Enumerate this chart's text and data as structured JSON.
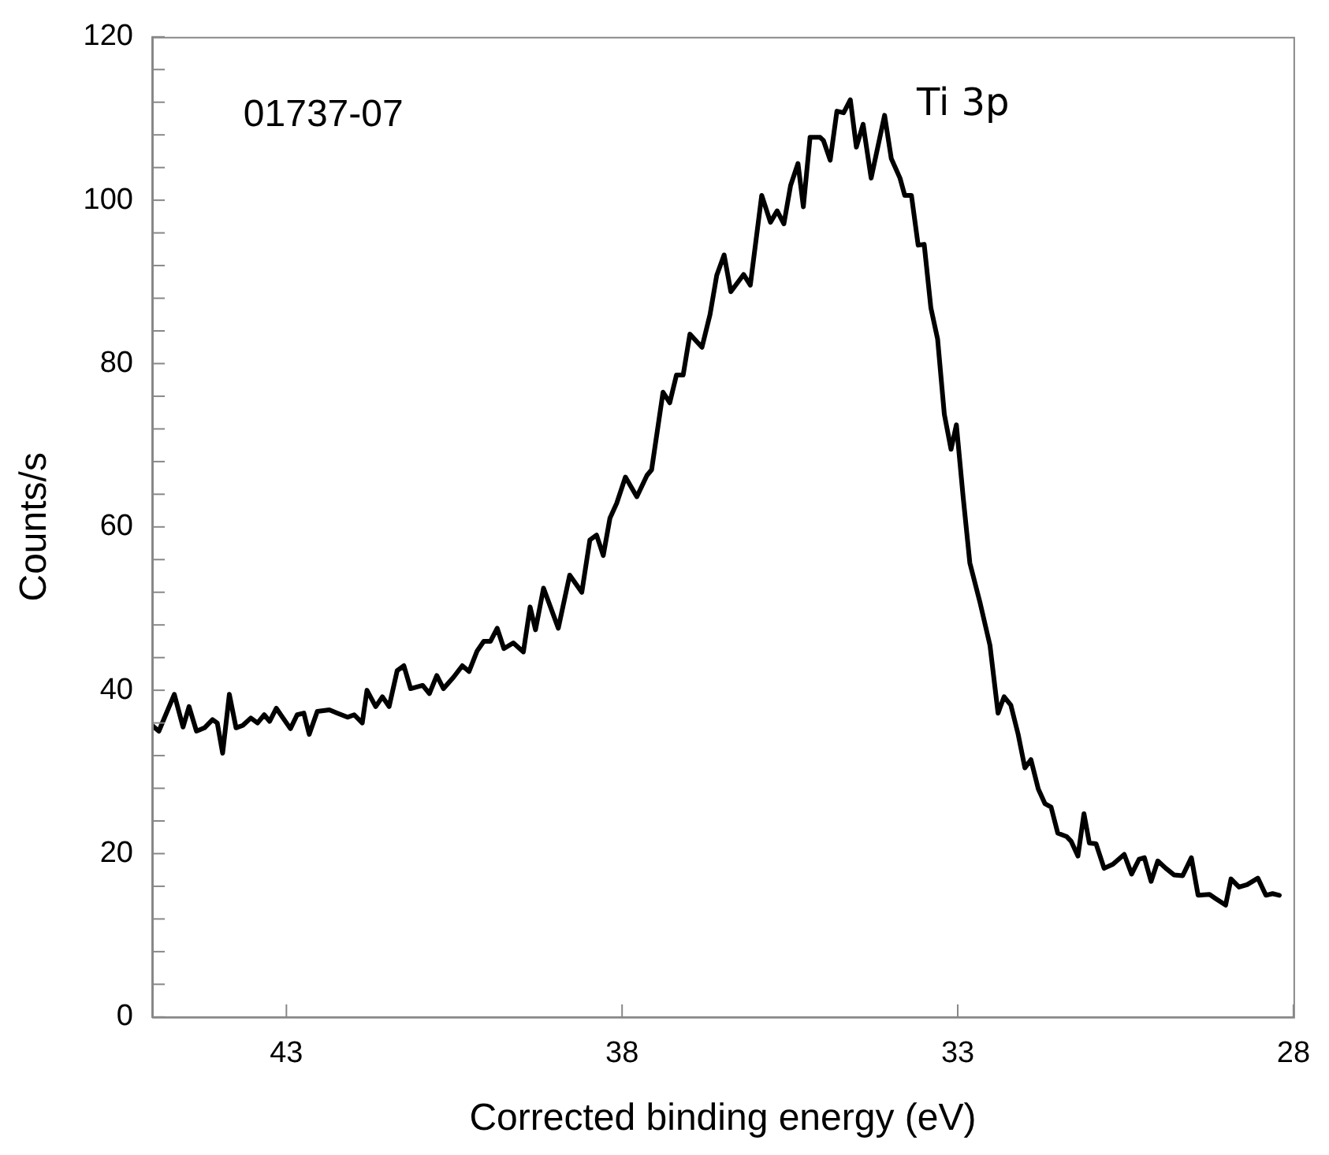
{
  "chart_data": {
    "type": "line",
    "xlabel": "Corrected binding energy (eV)",
    "ylabel": "Counts/s",
    "annotations": [
      "01737-07",
      "Ti 3p"
    ],
    "xlim": [
      45,
      28
    ],
    "xticks": [
      43,
      38,
      33,
      28
    ],
    "ylim": [
      0,
      120
    ],
    "yticks": [
      0,
      {
        "value": 4,
        "label": null
      },
      {
        "value": 8,
        "label": null
      },
      {
        "value": 12,
        "label": null
      },
      {
        "value": 16,
        "label": null
      },
      20,
      {
        "value": 24,
        "label": null
      },
      {
        "value": 28,
        "label": null
      },
      {
        "value": 32,
        "label": null
      },
      {
        "value": 36,
        "label": null
      },
      40,
      {
        "value": 44,
        "label": null
      },
      {
        "value": 48,
        "label": null
      },
      {
        "value": 52,
        "label": null
      },
      {
        "value": 56,
        "label": null
      },
      60,
      {
        "value": 64,
        "label": null
      },
      {
        "value": 68,
        "label": null
      },
      {
        "value": 72,
        "label": null
      },
      {
        "value": 76,
        "label": null
      },
      80,
      {
        "value": 84,
        "label": null
      },
      {
        "value": 88,
        "label": null
      },
      {
        "value": 92,
        "label": null
      },
      {
        "value": 96,
        "label": null
      },
      100,
      {
        "value": 104,
        "label": null
      },
      {
        "value": 108,
        "label": null
      },
      {
        "value": 112,
        "label": null
      },
      {
        "value": 116,
        "label": null
      },
      120
    ],
    "grid": false,
    "legend": false,
    "marker": "none",
    "line_style": "solid",
    "series": [
      {
        "color": "#000000",
        "x": [
          45.0,
          44.9,
          44.67,
          44.54,
          44.45,
          44.34,
          44.22,
          44.1,
          44.03,
          43.95,
          43.85,
          43.75,
          43.65,
          43.53,
          43.43,
          43.33,
          43.25,
          43.15,
          43.05,
          42.94,
          42.84,
          42.74,
          42.66,
          42.54,
          42.36,
          42.24,
          42.09,
          41.99,
          41.87,
          41.8,
          41.67,
          41.57,
          41.47,
          41.35,
          41.25,
          41.15,
          40.97,
          40.87,
          40.76,
          40.66,
          40.51,
          40.38,
          40.28,
          40.16,
          40.06,
          39.96,
          39.86,
          39.76,
          39.62,
          39.47,
          39.37,
          39.29,
          39.17,
          38.95,
          38.78,
          38.6,
          38.48,
          38.38,
          38.28,
          38.18,
          38.08,
          37.95,
          37.78,
          37.63,
          37.56,
          37.39,
          37.29,
          37.19,
          37.09,
          36.99,
          36.81,
          36.69,
          36.59,
          36.48,
          36.38,
          36.19,
          36.09,
          35.92,
          35.79,
          35.69,
          35.59,
          35.49,
          35.38,
          35.3,
          35.2,
          35.05,
          35.0,
          34.9,
          34.8,
          34.7,
          34.6,
          34.51,
          34.41,
          34.29,
          34.09,
          33.99,
          33.86,
          33.79,
          33.69,
          33.59,
          33.5,
          33.4,
          33.3,
          33.2,
          33.1,
          33.02,
          32.92,
          32.82,
          32.67,
          32.52,
          32.4,
          32.31,
          32.21,
          32.1,
          32.0,
          31.91,
          31.8,
          31.7,
          31.61,
          31.51,
          31.38,
          31.31,
          31.21,
          31.12,
          31.04,
          30.94,
          30.82,
          30.69,
          30.52,
          30.41,
          30.3,
          30.22,
          30.12,
          30.02,
          29.9,
          29.78,
          29.65,
          29.52,
          29.42,
          29.25,
          29.16,
          29.01,
          28.93,
          28.81,
          28.69,
          28.53,
          28.41,
          28.31,
          28.21
        ],
        "values": [
          35.7,
          35.0,
          39.5,
          35.5,
          38.0,
          35.0,
          35.4,
          36.4,
          36.0,
          32.3,
          39.5,
          35.4,
          35.7,
          36.6,
          36.0,
          37.0,
          36.2,
          37.8,
          36.6,
          35.3,
          37.0,
          37.2,
          34.6,
          37.4,
          37.6,
          37.2,
          36.7,
          37.0,
          36.0,
          40.0,
          38.0,
          39.2,
          38.0,
          42.4,
          43.0,
          40.2,
          40.6,
          39.6,
          41.8,
          40.2,
          41.6,
          43.0,
          42.3,
          44.8,
          46.0,
          46.0,
          47.6,
          45.1,
          45.8,
          44.7,
          50.2,
          47.4,
          52.5,
          47.6,
          54.1,
          52.0,
          58.4,
          59.0,
          56.5,
          61.1,
          62.9,
          66.1,
          63.7,
          66.3,
          67.0,
          76.5,
          75.2,
          78.6,
          78.6,
          83.6,
          82.0,
          86.0,
          90.8,
          93.3,
          88.8,
          90.9,
          89.6,
          100.6,
          97.3,
          98.7,
          97.1,
          101.8,
          104.5,
          99.2,
          107.7,
          107.7,
          107.3,
          104.9,
          110.9,
          110.7,
          112.3,
          106.5,
          109.3,
          102.7,
          110.4,
          105.1,
          102.7,
          100.6,
          100.6,
          94.5,
          94.6,
          86.8,
          83.0,
          73.8,
          69.5,
          72.5,
          63.7,
          55.6,
          50.8,
          45.5,
          37.2,
          39.2,
          38.2,
          34.6,
          30.5,
          31.5,
          27.9,
          26.1,
          25.7,
          22.5,
          22.1,
          21.5,
          19.7,
          24.9,
          21.3,
          21.2,
          18.2,
          18.7,
          19.9,
          17.5,
          19.3,
          19.5,
          16.6,
          19.1,
          18.2,
          17.4,
          17.3,
          19.5,
          14.9,
          15.0,
          14.5,
          13.7,
          16.9,
          15.9,
          16.2,
          17.0,
          14.9,
          15.1,
          14.9
        ]
      }
    ]
  }
}
